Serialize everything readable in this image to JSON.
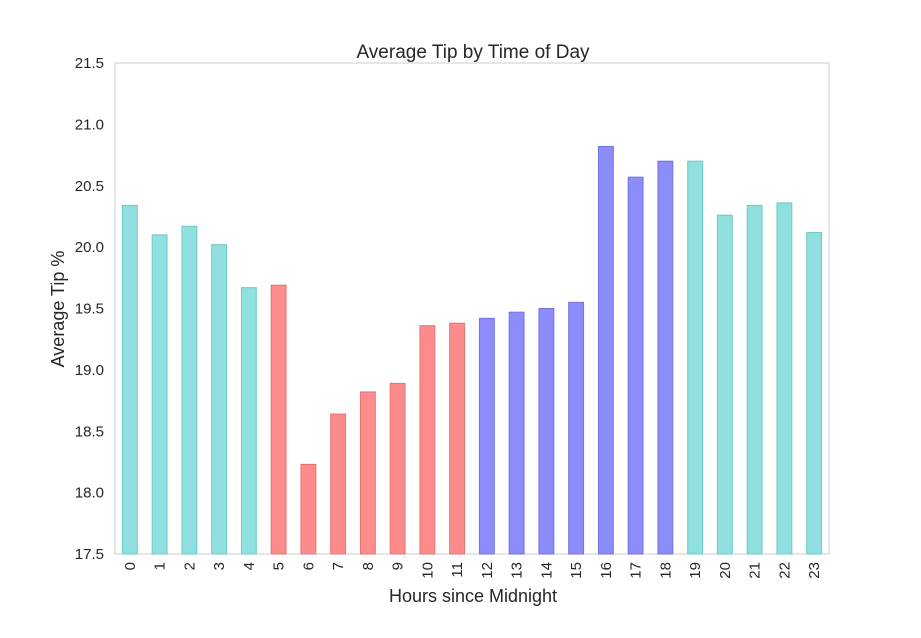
{
  "chart_data": {
    "type": "bar",
    "title": "Average Tip by Time of Day",
    "xlabel": "Hours since Midnight",
    "ylabel": "Average Tip %",
    "ylim": [
      17.5,
      21.5
    ],
    "yticks": [
      "17.5",
      "18.0",
      "18.5",
      "19.0",
      "19.5",
      "20.0",
      "20.5",
      "21.0",
      "21.5"
    ],
    "grid": false,
    "categories": [
      "0",
      "1",
      "2",
      "3",
      "4",
      "5",
      "6",
      "7",
      "8",
      "9",
      "10",
      "11",
      "12",
      "13",
      "14",
      "15",
      "16",
      "17",
      "18",
      "19",
      "20",
      "21",
      "22",
      "23"
    ],
    "values": [
      20.34,
      20.1,
      20.17,
      20.02,
      19.67,
      19.69,
      18.23,
      18.64,
      18.82,
      18.89,
      19.36,
      19.38,
      19.42,
      19.47,
      19.5,
      19.55,
      20.82,
      20.57,
      20.7,
      20.7,
      20.26,
      20.34,
      20.36,
      20.12
    ],
    "colors": [
      "#8fe0de",
      "#8fe0de",
      "#8fe0de",
      "#8fe0de",
      "#8fe0de",
      "#ff8c8c",
      "#ff8c8c",
      "#ff8c8c",
      "#ff8c8c",
      "#ff8c8c",
      "#ff8c8c",
      "#ff8c8c",
      "#8c8cfa",
      "#8c8cfa",
      "#8c8cfa",
      "#8c8cfa",
      "#8c8cfa",
      "#8c8cfa",
      "#8c8cfa",
      "#8fe0de",
      "#8fe0de",
      "#8fe0de",
      "#8fe0de",
      "#8fe0de"
    ],
    "edge_colors": {
      "#8fe0de": "#6dcac6",
      "#ff8c8c": "#e27474",
      "#8c8cfa": "#7474e0"
    }
  }
}
